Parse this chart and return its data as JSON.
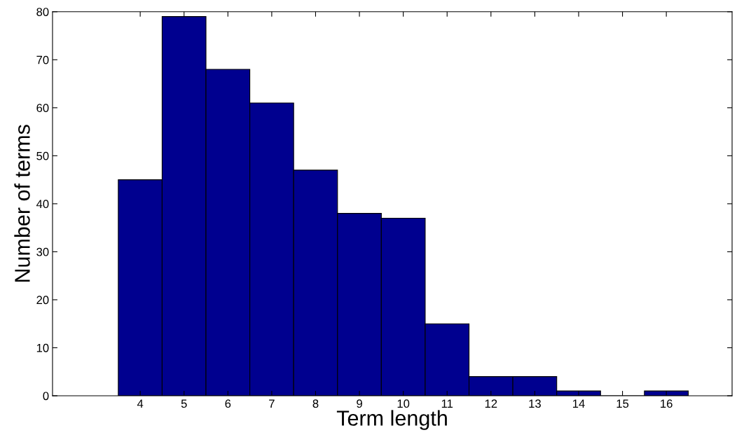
{
  "chart_data": {
    "type": "histogram",
    "xlabel": "Term length",
    "ylabel": "Number of terms",
    "bins": [
      3.5,
      4.5,
      5.5,
      6.5,
      7.5,
      8.5,
      9.5,
      10.5,
      11.5,
      12.5,
      13.5,
      14.5,
      15.5,
      16.5
    ],
    "values": [
      45,
      79,
      68,
      61,
      47,
      38,
      37,
      15,
      4,
      4,
      1,
      0,
      1
    ],
    "color": "#00008f",
    "xlim": [
      2,
      17.5
    ],
    "xticks": [
      4,
      5,
      6,
      7,
      8,
      9,
      10,
      11,
      12,
      13,
      14,
      15,
      16
    ],
    "ylim": [
      0,
      80
    ],
    "yticks": [
      0,
      10,
      20,
      30,
      40,
      50,
      60,
      70,
      80
    ],
    "grid": false,
    "legend": false
  }
}
